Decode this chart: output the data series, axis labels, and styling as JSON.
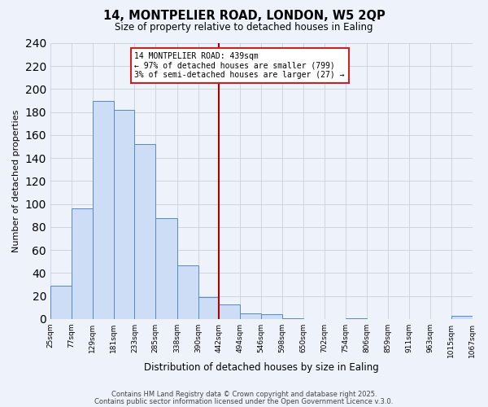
{
  "title1": "14, MONTPELIER ROAD, LONDON, W5 2QP",
  "title2": "Size of property relative to detached houses in Ealing",
  "xlabel": "Distribution of detached houses by size in Ealing",
  "ylabel": "Number of detached properties",
  "bin_edges": [
    25,
    77,
    129,
    181,
    233,
    285,
    338,
    390,
    442,
    494,
    546,
    598,
    650,
    702,
    754,
    806,
    859,
    911,
    963,
    1015,
    1067
  ],
  "bar_heights": [
    29,
    96,
    190,
    182,
    152,
    88,
    47,
    19,
    13,
    5,
    4,
    1,
    0,
    0,
    1,
    0,
    0,
    0,
    0,
    3
  ],
  "vline_x": 442,
  "vline_color": "#aa0000",
  "bar_fill_color": "#ccddf5",
  "bar_edge_color": "#5588cc",
  "annotation_text": "14 MONTPELIER ROAD: 439sqm\n← 97% of detached houses are smaller (799)\n3% of semi-detached houses are larger (27) →",
  "annotation_box_color": "#ffffff",
  "annotation_box_edge": "#cc2222",
  "ylim": [
    0,
    240
  ],
  "yticks": [
    0,
    20,
    40,
    60,
    80,
    100,
    120,
    140,
    160,
    180,
    200,
    220,
    240
  ],
  "tick_labels": [
    "25sqm",
    "77sqm",
    "129sqm",
    "181sqm",
    "233sqm",
    "285sqm",
    "338sqm",
    "390sqm",
    "442sqm",
    "494sqm",
    "546sqm",
    "598sqm",
    "650sqm",
    "702sqm",
    "754sqm",
    "806sqm",
    "859sqm",
    "911sqm",
    "963sqm",
    "1015sqm",
    "1067sqm"
  ],
  "footer1": "Contains HM Land Registry data © Crown copyright and database right 2025.",
  "footer2": "Contains public sector information licensed under the Open Government Licence v.3.0.",
  "bg_color": "#eef2fb",
  "plot_bg_color": "#eef2fb",
  "grid_color": "#c8cfe0"
}
